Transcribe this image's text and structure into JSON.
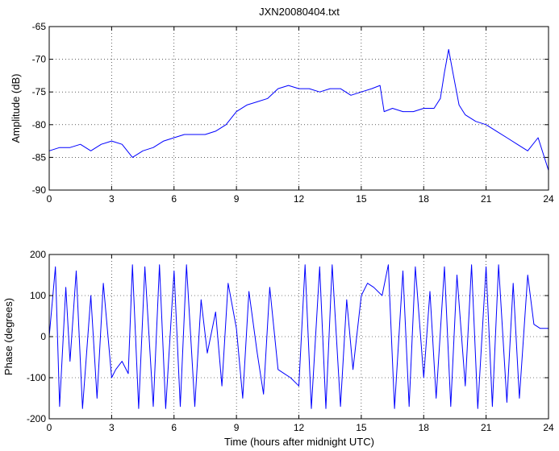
{
  "figure": {
    "title": "JXN20080404.txt",
    "line_color": "#0000ff"
  },
  "chart_data": [
    {
      "type": "line",
      "title": "JXN20080404.txt",
      "xlabel": "",
      "ylabel": "Amplitude (dB)",
      "xlim": [
        0,
        24
      ],
      "ylim": [
        -90,
        -65
      ],
      "xticks": [
        0,
        3,
        6,
        9,
        12,
        15,
        18,
        21,
        24
      ],
      "yticks": [
        -90,
        -85,
        -80,
        -75,
        -70,
        -65
      ],
      "grid": true,
      "series": [
        {
          "x": [
            0,
            0.5,
            1,
            1.5,
            2,
            2.5,
            3,
            3.5,
            4,
            4.5,
            5,
            5.5,
            6,
            6.5,
            7,
            7.5,
            8,
            8.5,
            9,
            9.5,
            10,
            10.5,
            11,
            11.5,
            12,
            12.5,
            13,
            13.5,
            14,
            14.5,
            15,
            15.5,
            15.9,
            16.1,
            16.5,
            17,
            17.5,
            18,
            18.5,
            18.8,
            19,
            19.2,
            19.4,
            19.7,
            20,
            20.5,
            21,
            21.5,
            22,
            22.5,
            23,
            23.5,
            24
          ],
          "y": [
            -84,
            -83.5,
            -83.5,
            -83,
            -84,
            -83,
            -82.5,
            -83,
            -85,
            -84,
            -83.5,
            -82.5,
            -82,
            -81.5,
            -81.5,
            -81.5,
            -81,
            -80,
            -78,
            -77,
            -76.5,
            -76,
            -74.5,
            -74,
            -74.5,
            -74.5,
            -75,
            -74.5,
            -74.5,
            -75.5,
            -75,
            -74.5,
            -74,
            -78,
            -77.5,
            -78,
            -78,
            -77.5,
            -77.5,
            -76,
            -72,
            -68.5,
            -72,
            -77,
            -78.5,
            -79.5,
            -80,
            -81,
            -82,
            -83,
            -84,
            -82,
            -87
          ]
        }
      ]
    },
    {
      "type": "line",
      "title": "",
      "xlabel": "Time (hours after midnight UTC)",
      "ylabel": "Phase (degrees)",
      "xlim": [
        0,
        24
      ],
      "ylim": [
        -200,
        200
      ],
      "xticks": [
        0,
        3,
        6,
        9,
        12,
        15,
        18,
        21,
        24
      ],
      "yticks": [
        -200,
        -100,
        0,
        100,
        200
      ],
      "grid": true,
      "series": [
        {
          "x": [
            0,
            0.3,
            0.5,
            0.8,
            1,
            1.3,
            1.6,
            2,
            2.3,
            2.6,
            3,
            3.2,
            3.5,
            3.8,
            4,
            4.3,
            4.6,
            5,
            5.3,
            5.6,
            6,
            6.3,
            6.6,
            7,
            7.3,
            7.6,
            8,
            8.3,
            8.6,
            9,
            9.3,
            9.6,
            10,
            10.3,
            10.6,
            11,
            11.3,
            11.6,
            12,
            12.3,
            12.6,
            13,
            13.3,
            13.6,
            14,
            14.3,
            14.6,
            15,
            15.3,
            15.6,
            16,
            16.3,
            16.6,
            17,
            17.3,
            17.6,
            18,
            18.3,
            18.6,
            19,
            19.3,
            19.6,
            20,
            20.3,
            20.6,
            21,
            21.3,
            21.6,
            22,
            22.3,
            22.6,
            23,
            23.3,
            23.6,
            24
          ],
          "y": [
            0,
            170,
            -170,
            120,
            -60,
            160,
            -175,
            100,
            -150,
            130,
            -100,
            -80,
            -60,
            -90,
            175,
            -175,
            170,
            -170,
            175,
            -175,
            160,
            -170,
            175,
            -170,
            90,
            -40,
            60,
            -120,
            130,
            20,
            -150,
            110,
            -40,
            -140,
            120,
            -80,
            -90,
            -100,
            -120,
            175,
            -175,
            170,
            -175,
            175,
            -170,
            90,
            -80,
            100,
            130,
            120,
            100,
            175,
            -175,
            160,
            -170,
            170,
            -100,
            110,
            -150,
            170,
            -170,
            150,
            -120,
            175,
            -175,
            170,
            -170,
            175,
            -160,
            130,
            -150,
            150,
            30,
            20,
            20
          ]
        }
      ]
    }
  ]
}
